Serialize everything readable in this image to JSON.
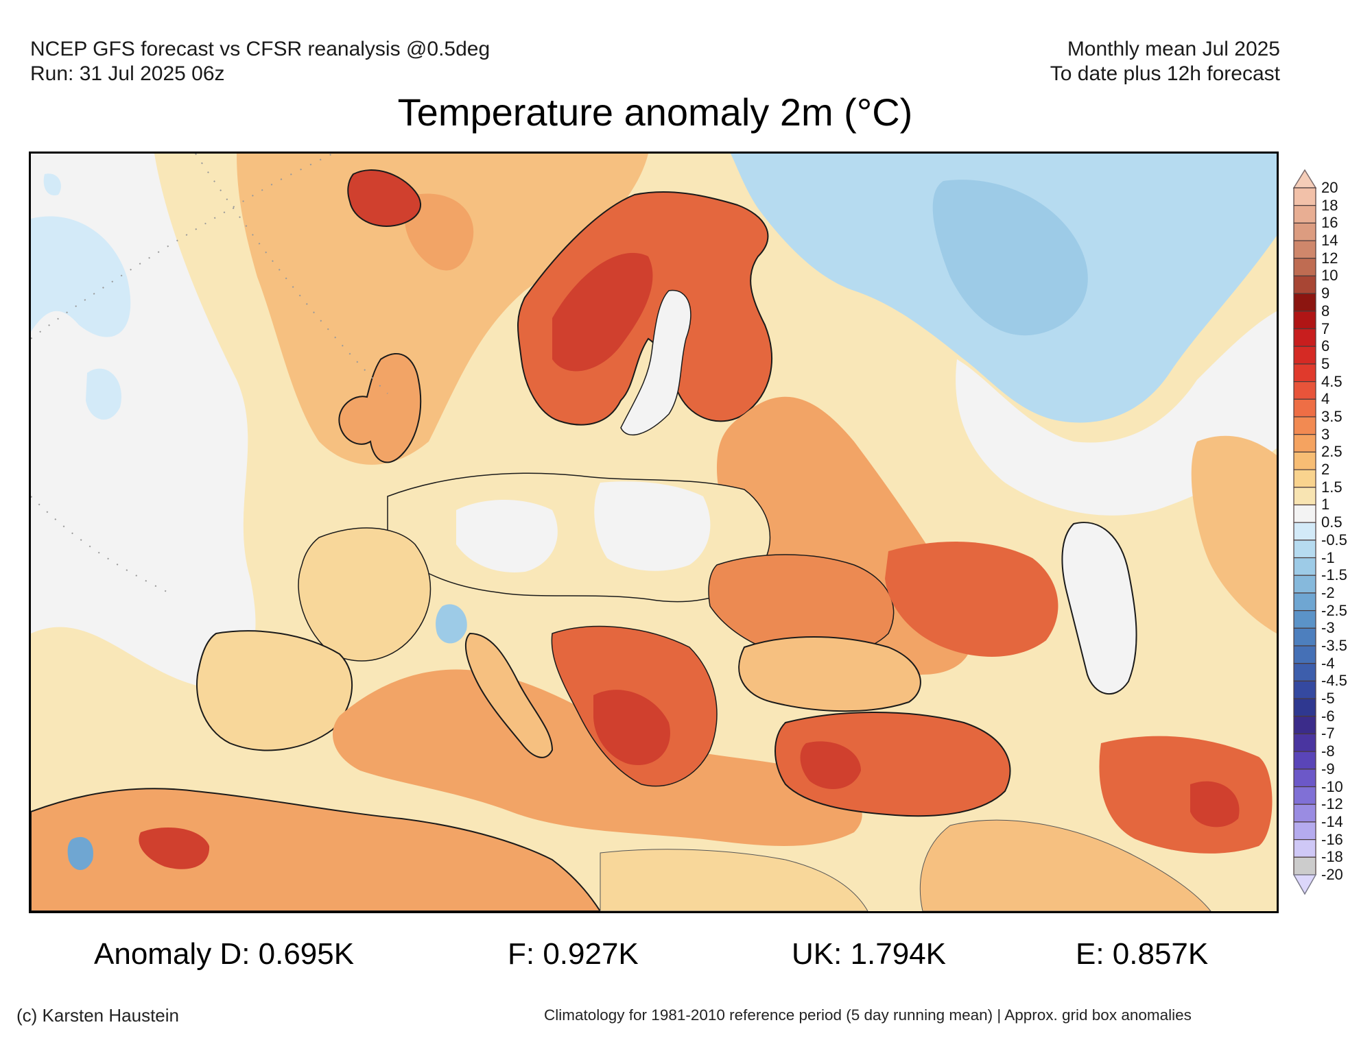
{
  "header": {
    "left_line1": "NCEP GFS forecast vs CFSR reanalysis @0.5deg",
    "left_line2": "Run: 31 Jul 2025 06z",
    "right_line1": "Monthly mean Jul 2025",
    "right_line2": "To date plus 12h forecast"
  },
  "title": "Temperature anomaly 2m (°C)",
  "colorbar": {
    "labels": [
      "20",
      "18",
      "16",
      "14",
      "12",
      "10",
      "9",
      "8",
      "7",
      "6",
      "5",
      "4.5",
      "4",
      "3.5",
      "3",
      "2.5",
      "2",
      "1.5",
      "1",
      "0.5",
      "-0.5",
      "-1",
      "-1.5",
      "-2",
      "-2.5",
      "-3",
      "-3.5",
      "-4",
      "-4.5",
      "-5",
      "-6",
      "-7",
      "-8",
      "-9",
      "-10",
      "-12",
      "-14",
      "-16",
      "-18",
      "-20"
    ],
    "colors": [
      "#f2c1a9",
      "#e8ae93",
      "#dc9c80",
      "#cf876b",
      "#bf6c52",
      "#a84634",
      "#8c1510",
      "#b01515",
      "#c81e1e",
      "#d52a24",
      "#e03a2c",
      "#e8543a",
      "#ee6e45",
      "#f28a52",
      "#f5a360",
      "#f7bd74",
      "#f9d38e",
      "#f8e4b2",
      "#f3f3f3",
      "#d3eaf8",
      "#b6dbf0",
      "#9dcbe7",
      "#86b9dc",
      "#6fa6d2",
      "#5b93c8",
      "#4d7fbe",
      "#4570b6",
      "#3d5eac",
      "#3549a0",
      "#2f3890",
      "#3b2c8a",
      "#4a35a0",
      "#5a45b8",
      "#6c58c8",
      "#8070d6",
      "#9a8ce2",
      "#b5abee",
      "#cfc8f6"
    ],
    "top_arrow_color": "#f5cdb8",
    "bottom_arrow_color": "#dcd7fb"
  },
  "stats": {
    "d": "Anomaly D: 0.695K",
    "f": "F: 0.927K",
    "uk": "UK: 1.794K",
    "e": "E: 0.857K"
  },
  "footer": {
    "credit": "(c) Karsten Haustein",
    "note": "Climatology for 1981-2010 reference period (5 day running mean) | Approx. grid box anomalies"
  },
  "map_palette": {
    "neutral": "#f3f3f3",
    "light_yellow": "#f9e7b8",
    "yellow": "#f8d79a",
    "light_orange": "#f6c080",
    "orange": "#f2a466",
    "dark_orange": "#ec8a52",
    "red_orange": "#e4673e",
    "red": "#d0402e",
    "light_blue": "#d3eaf8",
    "blue": "#b6dbf0",
    "mid_blue": "#9dcbe7",
    "coast": "#1a1a1a",
    "border": "#555555"
  }
}
